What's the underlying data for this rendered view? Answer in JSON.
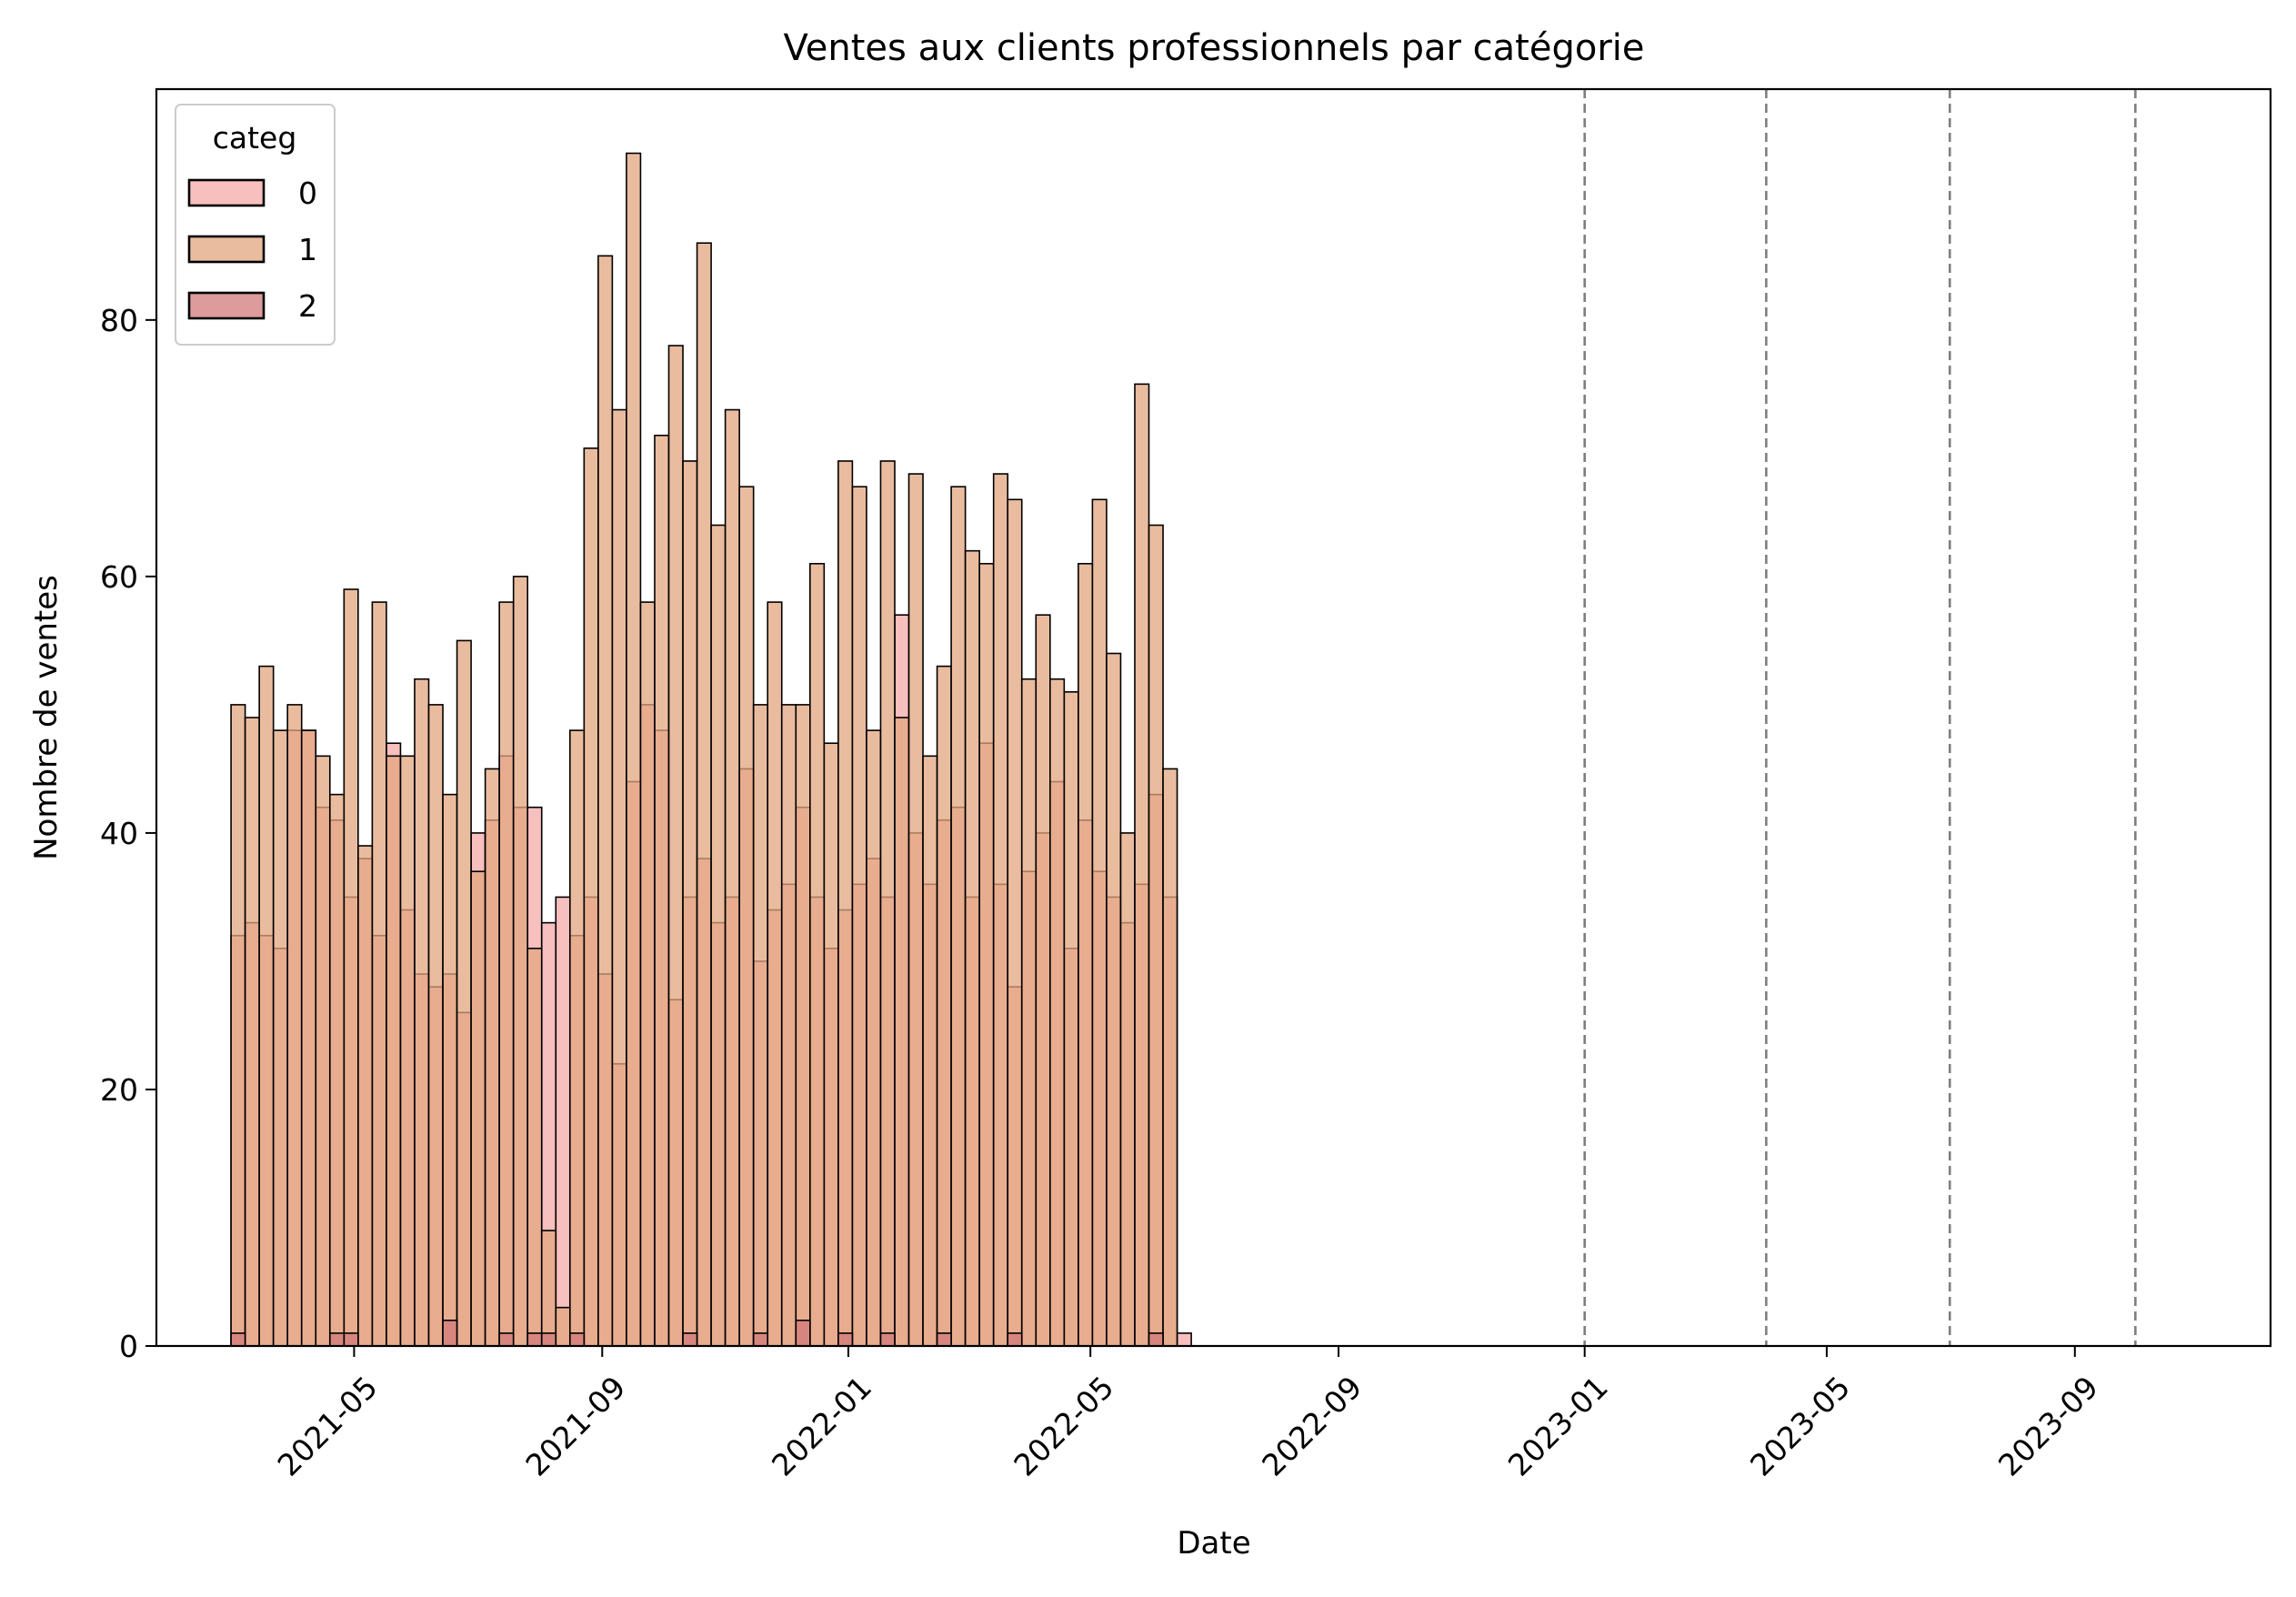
{
  "chart_data": {
    "type": "bar",
    "subtype": "overlaid histogram",
    "title": "Ventes aux clients professionnels par catégorie",
    "xlabel": "Date",
    "ylabel": "Nombre de ventes",
    "ylim": [
      0,
      98
    ],
    "y_ticks": [
      "0",
      "20",
      "40",
      "60",
      "80"
    ],
    "y_tick_values": [
      0,
      20,
      40,
      60,
      80
    ],
    "xlim": [
      "2021-01-23",
      "2023-12-07"
    ],
    "x_ticks": [
      "2021-05",
      "2021-09",
      "2022-01",
      "2022-05",
      "2022-09",
      "2023-01",
      "2023-05",
      "2023-09"
    ],
    "x_tick_dates": [
      "2021-05-01",
      "2021-09-01",
      "2022-01-01",
      "2022-05-01",
      "2022-09-01",
      "2023-01-01",
      "2023-05-01",
      "2023-09-01"
    ],
    "vlines_dashed": [
      "2023-01-01",
      "2023-04-01",
      "2023-07-01",
      "2023-10-01"
    ],
    "grid": false,
    "legend": {
      "title": "categ",
      "position": "top-left"
    },
    "bin_start": "2021-03-01",
    "bin_width_days": 7,
    "series": [
      {
        "name": "0",
        "color": "#f4a9a8",
        "values": [
          32,
          33,
          32,
          31,
          48,
          48,
          42,
          41,
          35,
          38,
          32,
          47,
          34,
          29,
          28,
          29,
          26,
          40,
          41,
          46,
          42,
          42,
          33,
          35,
          32,
          35,
          29,
          22,
          44,
          50,
          48,
          27,
          35,
          38,
          33,
          35,
          45,
          30,
          34,
          36,
          42,
          35,
          31,
          34,
          36,
          38,
          35,
          57,
          40,
          36,
          41,
          42,
          35,
          47,
          36,
          28,
          37,
          40,
          44,
          31,
          41,
          37,
          35,
          33,
          36,
          43,
          35,
          1
        ]
      },
      {
        "name": "1",
        "color": "#e3a57f",
        "values": [
          50,
          49,
          53,
          48,
          50,
          48,
          46,
          43,
          59,
          39,
          58,
          46,
          46,
          52,
          50,
          43,
          55,
          37,
          45,
          58,
          60,
          31,
          9,
          3,
          48,
          70,
          85,
          73,
          93,
          58,
          71,
          78,
          69,
          86,
          64,
          73,
          67,
          50,
          58,
          50,
          50,
          61,
          47,
          69,
          67,
          48,
          69,
          49,
          68,
          46,
          53,
          67,
          62,
          61,
          68,
          66,
          52,
          57,
          52,
          51,
          61,
          66,
          54,
          40,
          75,
          64,
          45,
          0
        ]
      },
      {
        "name": "2",
        "color": "#d17a7a",
        "values": [
          1,
          0,
          0,
          0,
          0,
          0,
          0,
          1,
          1,
          0,
          0,
          0,
          0,
          0,
          0,
          2,
          0,
          0,
          0,
          1,
          0,
          1,
          1,
          0,
          1,
          0,
          0,
          0,
          0,
          0,
          0,
          0,
          1,
          0,
          0,
          0,
          0,
          1,
          0,
          0,
          2,
          0,
          0,
          1,
          0,
          0,
          1,
          0,
          0,
          0,
          1,
          0,
          0,
          0,
          0,
          1,
          0,
          0,
          0,
          0,
          0,
          0,
          0,
          0,
          0,
          1,
          0,
          0
        ]
      }
    ]
  }
}
